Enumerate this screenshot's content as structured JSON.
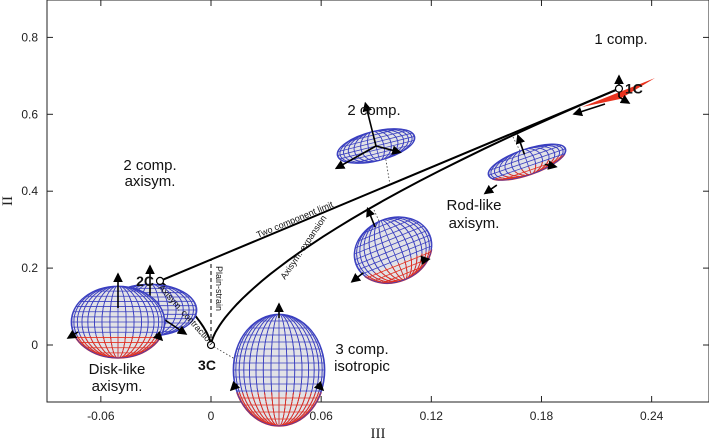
{
  "chart_data": {
    "type": "line",
    "xlabel": "III",
    "ylabel": "II",
    "xlim": [
      -0.088,
      0.272
    ],
    "ylim": [
      -0.148,
      0.896
    ],
    "xticks": [
      "-0.06",
      "0",
      "0.06",
      "0.12",
      "0.18",
      "0.24"
    ],
    "xtick_values": [
      -0.06,
      0,
      0.06,
      0.12,
      0.18,
      0.24
    ],
    "yticks": [
      "0",
      "0.2",
      "0.4",
      "0.6",
      "0.8"
    ],
    "ytick_values": [
      0,
      0.2,
      0.4,
      0.6,
      0.8
    ],
    "grid": false,
    "curves": [
      {
        "label": "Two component limit",
        "style": "solid",
        "x": [
          -0.02778,
          0.2222
        ],
        "y": [
          0.1667,
          0.6667
        ]
      },
      {
        "label": "Axisym. contraction",
        "style": "solid",
        "x": [
          0,
          -0.000384,
          -0.00307,
          -0.01037,
          -0.01843,
          -0.02778
        ],
        "y": [
          0,
          0.0096,
          0.0384,
          0.0864,
          0.1254,
          0.1667
        ]
      },
      {
        "label": "Axisym. expansion",
        "style": "solid",
        "x": [
          0,
          0.00075,
          0.006,
          0.02025,
          0.048,
          0.09375,
          0.162,
          0.2222
        ],
        "y": [
          0,
          0.015,
          0.06,
          0.135,
          0.24,
          0.375,
          0.54,
          0.6667
        ]
      },
      {
        "label": "Plain-strain",
        "style": "dashed",
        "x": [
          0,
          0
        ],
        "y": [
          0,
          0.2222
        ]
      }
    ],
    "points": [
      {
        "label": "1C",
        "x": 0.2222,
        "y": 0.6667
      },
      {
        "label": "2C",
        "x": -0.02778,
        "y": 0.1667
      },
      {
        "label": "3C",
        "x": 0,
        "y": 0
      }
    ],
    "annotations": {
      "one_comp": "1 comp.",
      "two_comp": "2 comp.",
      "two_comp_axisym_1": "2 comp.",
      "two_comp_axisym_2": "axisym.",
      "rod_like_1": "Rod-like",
      "rod_like_2": "axisym.",
      "disk_like_1": "Disk-like",
      "disk_like_2": "axisym.",
      "three_comp_1": "3 comp.",
      "three_comp_2": "isotropic"
    },
    "colors": {
      "mesh_blue": "#3a3fc0",
      "mesh_red": "#e8321e",
      "fill": "#e2e2e6",
      "line": "#000000"
    }
  }
}
